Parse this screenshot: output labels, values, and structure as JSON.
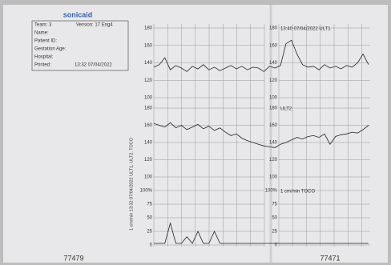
{
  "header": {
    "brand": "sonicaid",
    "team": "Team: 3",
    "version": "Version: 17 Eng4",
    "name": "Name:",
    "patient_id": "Patient ID:",
    "gestation": "Gestation Age:",
    "hospital": "Hospital:",
    "printed": "Printed:",
    "printed_time": "13:32 07/04/2022"
  },
  "side_label": "1 cm/min  13:32 07/04/2022  ULT1, ULT2, TOCO",
  "panels": [
    {
      "label": "13:40 07/04/2022 ULT1",
      "ylim": [
        100,
        180
      ],
      "yticks": [
        180,
        160,
        140,
        120,
        100
      ],
      "values": [
        135,
        138,
        146,
        132,
        137,
        134,
        130,
        136,
        133,
        138,
        132,
        135,
        131,
        134,
        137,
        133,
        136,
        132,
        135,
        134,
        130,
        136,
        134,
        137,
        162,
        166,
        150,
        138,
        135,
        136,
        132,
        138,
        134,
        136,
        133,
        137,
        135,
        140,
        150,
        138
      ]
    },
    {
      "label": "ULT2",
      "ylim": [
        100,
        180
      ],
      "yticks": [
        180,
        160,
        140,
        120,
        100
      ],
      "values": [
        162,
        160,
        158,
        163,
        157,
        160,
        155,
        158,
        161,
        156,
        159,
        154,
        157,
        152,
        148,
        150,
        145,
        142,
        140,
        138,
        136,
        135,
        134,
        138,
        140,
        143,
        146,
        144,
        147,
        148,
        146,
        150,
        138,
        147,
        149,
        150,
        152,
        151,
        155,
        160
      ]
    },
    {
      "label": "1 cm/min  TOCO",
      "ylim": [
        0,
        100
      ],
      "yticks": [
        {
          "value": 100,
          "label": "100%"
        },
        75,
        50,
        25,
        0
      ],
      "values": [
        3,
        3,
        3,
        40,
        3,
        3,
        15,
        3,
        25,
        3,
        3,
        25,
        3,
        3,
        3,
        3,
        3,
        3,
        3,
        3,
        3,
        3,
        3,
        3,
        3,
        3,
        3,
        3,
        3,
        3,
        3,
        3,
        3,
        3,
        3,
        3,
        3,
        3,
        3,
        3
      ]
    }
  ],
  "footer": {
    "left": "77479",
    "right": "77471"
  }
}
